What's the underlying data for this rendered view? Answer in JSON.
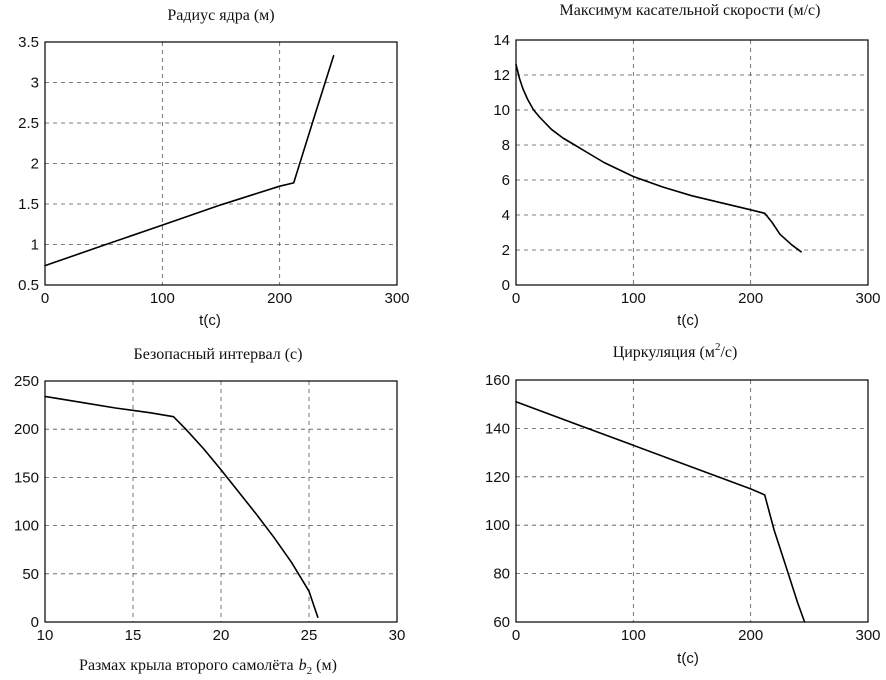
{
  "chart_data": [
    {
      "id": "core-radius",
      "type": "line",
      "title": "Радиус ядра (м)",
      "xlabel": "t(c)",
      "ylabel": "",
      "xlim": [
        0,
        300
      ],
      "ylim": [
        0.5,
        3.5
      ],
      "xticks": [
        0,
        100,
        200,
        300
      ],
      "xtick_labels": [
        "0",
        "100",
        "200",
        "300"
      ],
      "yticks": [
        0.5,
        1,
        1.5,
        2,
        2.5,
        3,
        3.5
      ],
      "ytick_labels": [
        "0.5",
        "1",
        "1.5",
        "2",
        "2.5",
        "3",
        "3.5"
      ],
      "grid": true,
      "series": [
        {
          "x": [
            0,
            50,
            100,
            150,
            200,
            212,
            230,
            246
          ],
          "y": [
            0.74,
            0.99,
            1.24,
            1.49,
            1.72,
            1.76,
            2.6,
            3.33
          ]
        }
      ]
    },
    {
      "id": "max-tangential-velocity",
      "type": "line",
      "title": "Максимум касательной скорости (м/с)",
      "xlabel": "t(c)",
      "ylabel": "",
      "xlim": [
        0,
        300
      ],
      "ylim": [
        0,
        14
      ],
      "xticks": [
        0,
        100,
        200,
        300
      ],
      "xtick_labels": [
        "0",
        "100",
        "200",
        "300"
      ],
      "yticks": [
        0,
        2,
        4,
        6,
        8,
        10,
        12,
        14
      ],
      "ytick_labels": [
        "0",
        "2",
        "4",
        "6",
        "8",
        "10",
        "12",
        "14"
      ],
      "grid": true,
      "series": [
        {
          "x": [
            0,
            3,
            6,
            10,
            15,
            20,
            30,
            40,
            50,
            60,
            75,
            100,
            125,
            150,
            175,
            200,
            212,
            218,
            225,
            235,
            243
          ],
          "y": [
            12.6,
            11.8,
            11.2,
            10.6,
            10.0,
            9.6,
            8.9,
            8.4,
            8.0,
            7.6,
            7.0,
            6.2,
            5.6,
            5.1,
            4.7,
            4.3,
            4.1,
            3.6,
            2.9,
            2.3,
            1.9
          ]
        }
      ]
    },
    {
      "id": "safe-interval",
      "type": "line",
      "title": "Безопасный интервал (с)",
      "xlabel": "Размах крыла второго самолёта b2 (м)",
      "xlabel_prefix": "Размах крыла второго самолёта",
      "xlabel_var": "b",
      "xlabel_sub": "2",
      "xlabel_suffix": "(м)",
      "ylabel": "",
      "xlim": [
        10,
        30
      ],
      "ylim": [
        0,
        250
      ],
      "xticks": [
        10,
        15,
        20,
        25,
        30
      ],
      "xtick_labels": [
        "10",
        "15",
        "20",
        "25",
        "30"
      ],
      "yticks": [
        0,
        50,
        100,
        150,
        200,
        250
      ],
      "ytick_labels": [
        "0",
        "50",
        "100",
        "150",
        "200",
        "250"
      ],
      "grid": true,
      "series": [
        {
          "x": [
            10,
            12,
            14,
            16,
            17.3,
            18,
            19,
            20,
            21,
            22,
            23,
            24,
            25,
            25.5
          ],
          "y": [
            234,
            228,
            222,
            217,
            213,
            200,
            180,
            158,
            135,
            112,
            88,
            62,
            32,
            5
          ]
        }
      ]
    },
    {
      "id": "circulation",
      "type": "line",
      "title": "Циркуляция (м2/с)",
      "title_base": "Циркуляция (м",
      "title_sup": "2",
      "title_tail": "/с)",
      "xlabel": "t(c)",
      "ylabel": "",
      "xlim": [
        0,
        300
      ],
      "ylim": [
        60,
        160
      ],
      "xticks": [
        0,
        100,
        200,
        300
      ],
      "xtick_labels": [
        "0",
        "100",
        "200",
        "300"
      ],
      "yticks": [
        60,
        80,
        100,
        120,
        140,
        160
      ],
      "ytick_labels": [
        "60",
        "80",
        "100",
        "120",
        "140",
        "160"
      ],
      "grid": true,
      "series": [
        {
          "x": [
            0,
            50,
            100,
            150,
            200,
            212,
            220,
            230,
            240,
            246
          ],
          "y": [
            151,
            142,
            133,
            124,
            115,
            112.5,
            98,
            83,
            68,
            60
          ]
        }
      ]
    }
  ]
}
